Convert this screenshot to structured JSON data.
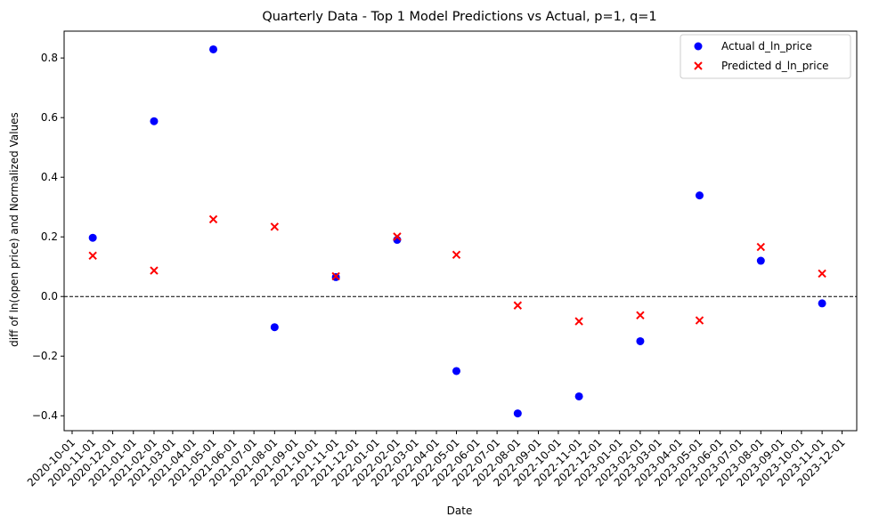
{
  "chart_data": {
    "type": "scatter",
    "title": "Quarterly Data - Top 1 Model Predictions vs Actual, p=1, q=1",
    "xlabel": "Date",
    "ylabel": "diff of ln(open price) and Normalized Values",
    "ylim": [
      -0.45,
      0.89
    ],
    "yticks": [
      -0.4,
      -0.2,
      0.0,
      0.2,
      0.4,
      0.6,
      0.8
    ],
    "ytick_labels": [
      "−0.4",
      "−0.2",
      "0.0",
      "0.2",
      "0.4",
      "0.6",
      "0.8"
    ],
    "xlim": [
      "2020-09-19",
      "2023-12-23"
    ],
    "xticks": [
      "2020-10-01",
      "2020-11-01",
      "2020-12-01",
      "2021-01-01",
      "2021-02-01",
      "2021-03-01",
      "2021-04-01",
      "2021-05-01",
      "2021-06-01",
      "2021-07-01",
      "2021-08-01",
      "2021-09-01",
      "2021-10-01",
      "2021-11-01",
      "2021-12-01",
      "2022-01-01",
      "2022-02-01",
      "2022-03-01",
      "2022-04-01",
      "2022-05-01",
      "2022-06-01",
      "2022-07-01",
      "2022-08-01",
      "2022-09-01",
      "2022-10-01",
      "2022-11-01",
      "2022-12-01",
      "2023-01-01",
      "2023-02-01",
      "2023-03-01",
      "2023-04-01",
      "2023-05-01",
      "2023-06-01",
      "2023-07-01",
      "2023-08-01",
      "2023-09-01",
      "2023-10-01",
      "2023-11-01",
      "2023-12-01"
    ],
    "horizontal_line": {
      "y": 0.0,
      "style": "dashed",
      "color": "#000000"
    },
    "legend_position": "top-right",
    "grid": false,
    "series": [
      {
        "name": "Actual d_ln_price",
        "marker": "circle",
        "color": "#0000ff",
        "points": [
          {
            "x": "2020-11-01",
            "y": 0.197
          },
          {
            "x": "2021-02-01",
            "y": 0.588
          },
          {
            "x": "2021-05-01",
            "y": 0.829
          },
          {
            "x": "2021-08-01",
            "y": -0.103
          },
          {
            "x": "2021-11-01",
            "y": 0.065
          },
          {
            "x": "2022-02-01",
            "y": 0.19
          },
          {
            "x": "2022-05-01",
            "y": -0.25
          },
          {
            "x": "2022-08-01",
            "y": -0.392
          },
          {
            "x": "2022-11-01",
            "y": -0.335
          },
          {
            "x": "2023-02-01",
            "y": -0.15
          },
          {
            "x": "2023-05-01",
            "y": 0.339
          },
          {
            "x": "2023-08-01",
            "y": 0.12
          },
          {
            "x": "2023-11-01",
            "y": -0.023
          }
        ]
      },
      {
        "name": "Predicted d_ln_price",
        "marker": "x",
        "color": "#ff0000",
        "points": [
          {
            "x": "2020-11-01",
            "y": 0.137
          },
          {
            "x": "2021-02-01",
            "y": 0.087
          },
          {
            "x": "2021-05-01",
            "y": 0.259
          },
          {
            "x": "2021-08-01",
            "y": 0.234
          },
          {
            "x": "2021-11-01",
            "y": 0.068
          },
          {
            "x": "2022-02-01",
            "y": 0.201
          },
          {
            "x": "2022-05-01",
            "y": 0.14
          },
          {
            "x": "2022-08-01",
            "y": -0.03
          },
          {
            "x": "2022-11-01",
            "y": -0.083
          },
          {
            "x": "2023-02-01",
            "y": -0.063
          },
          {
            "x": "2023-05-01",
            "y": -0.08
          },
          {
            "x": "2023-08-01",
            "y": 0.166
          },
          {
            "x": "2023-11-01",
            "y": 0.077
          }
        ]
      }
    ]
  }
}
